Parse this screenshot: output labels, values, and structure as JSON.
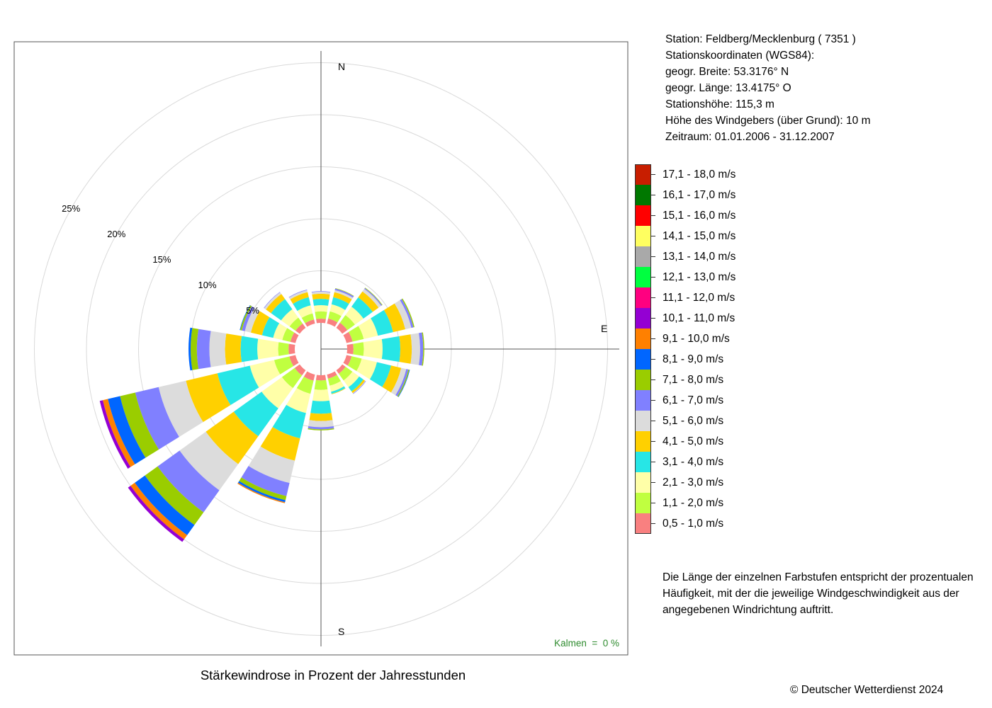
{
  "chart_data": {
    "type": "wind-rose",
    "title": "Stärkewindrose in Prozent der Jahresstunden",
    "directions": [
      "N",
      "NNO",
      "NO",
      "ONO",
      "O",
      "OSO",
      "SO",
      "SSO",
      "S",
      "SSW",
      "SW",
      "WSW",
      "W",
      "WNW",
      "NW",
      "NNW"
    ],
    "compass_labels": {
      "north": "N",
      "east": "E",
      "south": "S"
    },
    "radial_ticks": [
      {
        "value": 5,
        "label": "5%"
      },
      {
        "value": 10,
        "label": "10%"
      },
      {
        "value": 15,
        "label": "15%"
      },
      {
        "value": 20,
        "label": "20%"
      },
      {
        "value": 25,
        "label": "25%"
      }
    ],
    "rlim": [
      0,
      25
    ],
    "speed_classes": [
      {
        "label": "0,5 - 1,0 m/s",
        "color": "#F98080"
      },
      {
        "label": "1,1 - 2,0 m/s",
        "color": "#C0FF40"
      },
      {
        "label": "2,1 - 3,0 m/s",
        "color": "#FFFFA8"
      },
      {
        "label": "3,1 - 4,0 m/s",
        "color": "#27E6E6"
      },
      {
        "label": "4,1 - 5,0 m/s",
        "color": "#FFD000"
      },
      {
        "label": "5,1 - 6,0 m/s",
        "color": "#DCDCDC"
      },
      {
        "label": "6,1 - 7,0 m/s",
        "color": "#8080FF"
      },
      {
        "label": "7,1 - 8,0 m/s",
        "color": "#9ACD00"
      },
      {
        "label": "8,1 - 9,0 m/s",
        "color": "#0066FF"
      },
      {
        "label": "9,1 - 10,0 m/s",
        "color": "#FF8000"
      },
      {
        "label": "10,1 - 11,0 m/s",
        "color": "#9400D3"
      },
      {
        "label": "11,1 - 12,0 m/s",
        "color": "#FF0080"
      },
      {
        "label": "12,1 - 13,0 m/s",
        "color": "#00FF40"
      },
      {
        "label": "13,1 - 14,0 m/s",
        "color": "#A9A9A9"
      },
      {
        "label": "14,1 - 15,0 m/s",
        "color": "#FFFF60"
      },
      {
        "label": "15,1 - 16,0 m/s",
        "color": "#FF0000"
      },
      {
        "label": "16,1 - 17,0 m/s",
        "color": "#007800"
      },
      {
        "label": "17,1 - 18,0 m/s",
        "color": "#C81E00"
      }
    ],
    "series": [
      {
        "direction": "N",
        "values": [
          0.4,
          0.7,
          0.6,
          0.6,
          0.5,
          0.2,
          0.05
        ]
      },
      {
        "direction": "NNO",
        "values": [
          0.5,
          0.7,
          0.7,
          0.7,
          0.5,
          0.2,
          0.15,
          0.04
        ]
      },
      {
        "direction": "NO",
        "values": [
          0.6,
          0.9,
          1.0,
          1.1,
          0.7,
          0.3,
          0.1,
          0.05
        ]
      },
      {
        "direction": "ONO",
        "values": [
          0.6,
          1.1,
          1.4,
          1.5,
          1.2,
          0.6,
          0.2,
          0.1
        ]
      },
      {
        "direction": "O",
        "values": [
          0.6,
          1.0,
          1.8,
          1.7,
          1.1,
          0.8,
          0.3,
          0.1
        ]
      },
      {
        "direction": "OSO",
        "values": [
          0.5,
          1.0,
          1.5,
          1.4,
          1.0,
          0.5,
          0.2,
          0.1,
          0.05
        ]
      },
      {
        "direction": "SO",
        "values": [
          0.4,
          0.8,
          0.8,
          0.5,
          0.2,
          0.05,
          0.05
        ]
      },
      {
        "direction": "SSO",
        "values": [
          0.4,
          0.7,
          0.6,
          0.2,
          0.05
        ]
      },
      {
        "direction": "S",
        "values": [
          0.5,
          0.9,
          1.1,
          1.2,
          0.7,
          0.6,
          0.2,
          0.1
        ]
      },
      {
        "direction": "SSW",
        "values": [
          0.6,
          1.3,
          1.9,
          2.5,
          2.2,
          2.2,
          1.3,
          0.4,
          0.2,
          0.1
        ]
      },
      {
        "direction": "SW",
        "values": [
          0.6,
          1.5,
          2.4,
          3.3,
          3.3,
          3.1,
          2.6,
          1.5,
          1.2,
          0.5,
          0.3
        ]
      },
      {
        "direction": "WSW",
        "values": [
          0.6,
          1.5,
          2.4,
          3.2,
          3.1,
          2.7,
          2.3,
          1.5,
          1.2,
          0.5,
          0.3
        ]
      },
      {
        "direction": "W",
        "values": [
          0.6,
          1.0,
          2.0,
          1.6,
          1.5,
          1.5,
          1.2,
          0.6,
          0.2
        ]
      },
      {
        "direction": "WNW",
        "values": [
          0.5,
          0.8,
          0.9,
          1.1,
          1.1,
          0.6,
          0.3,
          0.15,
          0.05
        ]
      },
      {
        "direction": "NW",
        "values": [
          0.5,
          0.7,
          1.0,
          1.2,
          0.6,
          0.2,
          0.05
        ]
      },
      {
        "direction": "NNW",
        "values": [
          0.4,
          0.6,
          0.8,
          0.8,
          0.5,
          0.2,
          0.05
        ]
      }
    ],
    "calm_label": "Kalmen  =  0 %"
  },
  "station": {
    "lines": [
      "Station:  Feldberg/Mecklenburg  ( 7351 )",
      "Stationskoordinaten (WGS84):",
      "geogr. Breite: 53.3176° N",
      "geogr. Länge: 13.4175° O",
      "Stationshöhe: 115,3 m",
      "Höhe des Windgebers (über Grund): 10 m",
      "Zeitraum: 01.01.2006 - 31.12.2007"
    ]
  },
  "note": {
    "lines": [
      "Die Länge der einzelnen Farbstufen entspricht der prozentualen",
      "Häufigkeit, mit der die jeweilige Windgeschwindigkeit aus der",
      "angegebenen Windrichtung auftritt."
    ]
  },
  "copyright": "© Deutscher Wetterdienst  2024"
}
